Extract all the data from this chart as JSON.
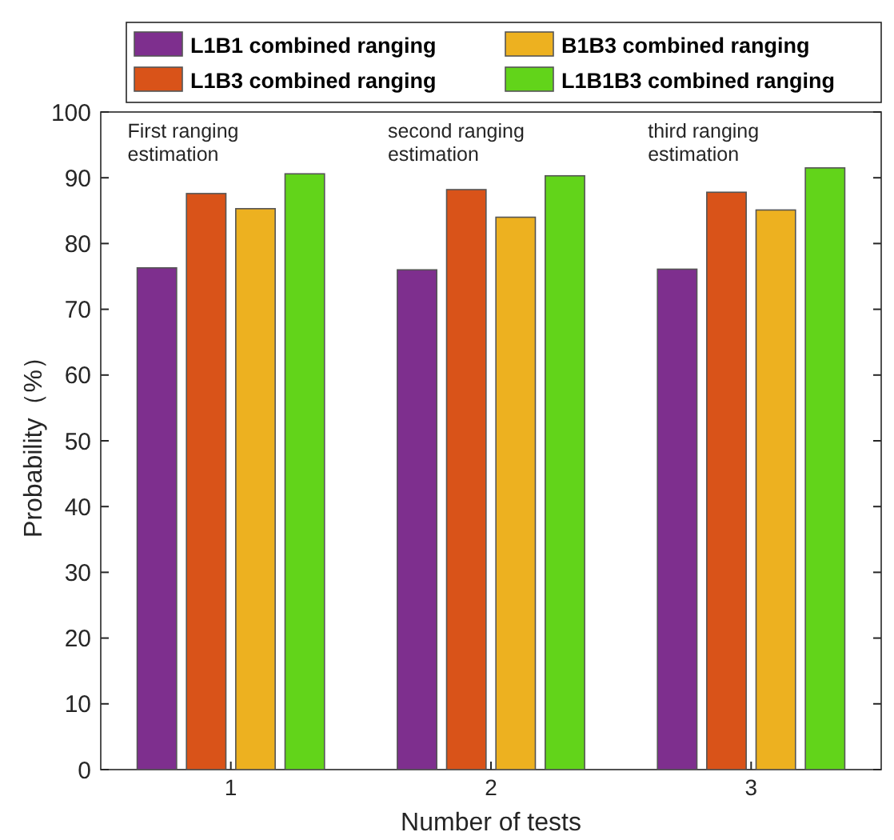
{
  "chart_data": {
    "type": "bar",
    "categories": [
      "1",
      "2",
      "3"
    ],
    "xlabel": "Number of tests",
    "ylabel": "Probability（%）",
    "series": [
      {
        "name": "L1B1 combined ranging",
        "color": "#7e2f8e",
        "values": [
          76.3,
          76.0,
          76.1
        ]
      },
      {
        "name": "L1B3 combined ranging",
        "color": "#d95319",
        "values": [
          87.6,
          88.2,
          87.8
        ]
      },
      {
        "name": "B1B3 combined ranging",
        "color": "#edb120",
        "values": [
          85.3,
          84.0,
          85.1
        ]
      },
      {
        "name": "L1B1B3 combined ranging",
        "color": "#62d41a",
        "values": [
          90.6,
          90.3,
          91.5
        ]
      }
    ],
    "ylim": [
      0,
      100
    ],
    "yticks": [
      0,
      10,
      20,
      30,
      40,
      50,
      60,
      70,
      80,
      90,
      100
    ],
    "grid": false,
    "legend": "top right",
    "annotations": [
      "First ranging\nestimation",
      "second ranging\nestimation",
      "third ranging\nestimation"
    ]
  }
}
